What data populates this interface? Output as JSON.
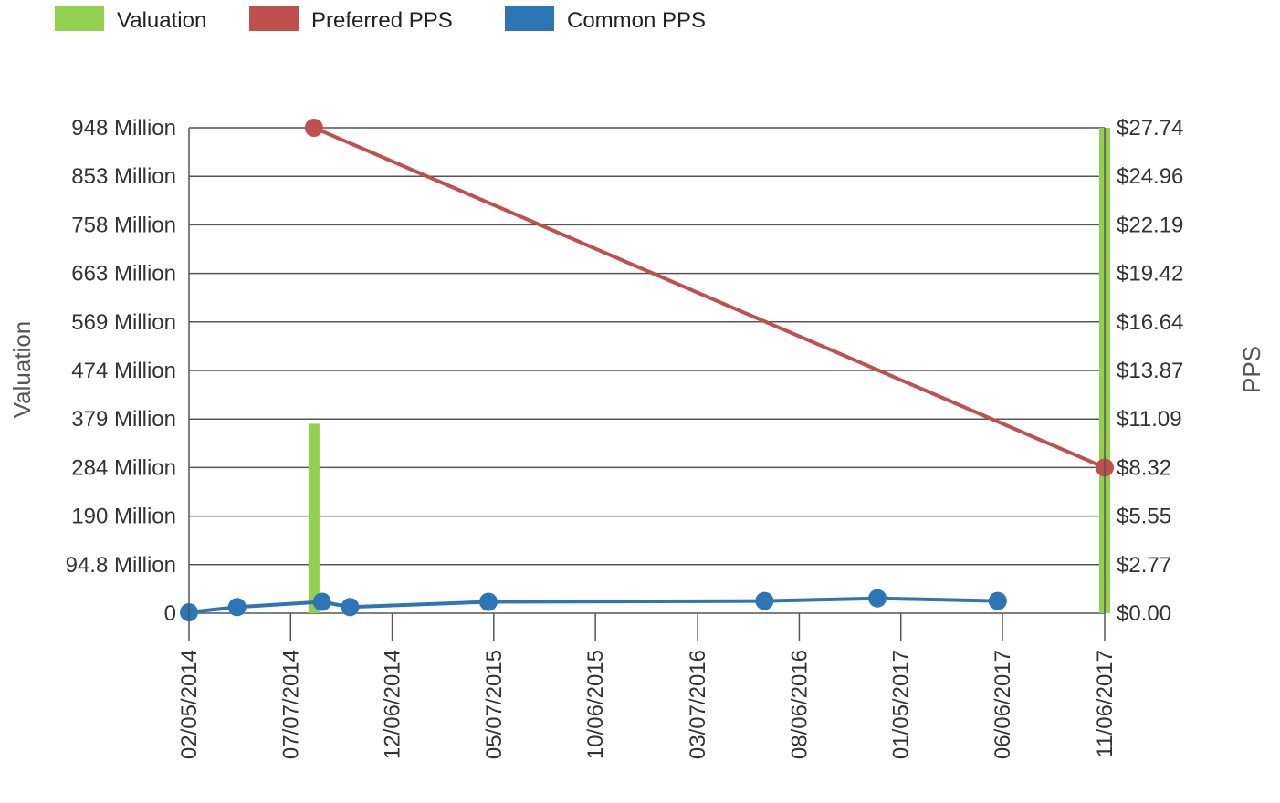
{
  "chart_data": {
    "type": "combo",
    "legend": [
      {
        "name": "Valuation",
        "color": "#92d050",
        "kind": "bar"
      },
      {
        "name": "Preferred PPS",
        "color": "#c0504d",
        "kind": "line"
      },
      {
        "name": "Common PPS",
        "color": "#2e75b6",
        "kind": "line"
      }
    ],
    "left_axis": {
      "title": "Valuation",
      "ticks": [
        "0",
        "94.8 Million",
        "190 Million",
        "284 Million",
        "379 Million",
        "474 Million",
        "569 Million",
        "663 Million",
        "758 Million",
        "853 Million",
        "948 Million"
      ],
      "range": [
        0,
        948000000
      ]
    },
    "right_axis": {
      "title": "PPS",
      "ticks": [
        "$0.00",
        "$2.77",
        "$5.55",
        "$8.32",
        "$11.09",
        "$13.87",
        "$16.64",
        "$19.42",
        "$22.19",
        "$24.96",
        "$27.74"
      ],
      "range": [
        0,
        27.74
      ]
    },
    "x_axis": {
      "type": "date",
      "range": [
        "2014-02-05",
        "2017-11-06"
      ],
      "ticks": [
        "02/05/2014",
        "07/07/2014",
        "12/06/2014",
        "05/07/2015",
        "10/06/2015",
        "03/07/2016",
        "08/06/2016",
        "01/05/2017",
        "06/06/2017",
        "11/06/2017"
      ]
    },
    "series": [
      {
        "name": "Valuation",
        "type": "bar",
        "axis": "left",
        "color": "#92d050",
        "points": [
          {
            "x": "2014-08-11",
            "y": 370000000
          },
          {
            "x": "2017-11-06",
            "y": 948000000
          }
        ]
      },
      {
        "name": "Preferred PPS",
        "type": "line",
        "axis": "right",
        "color": "#c0504d",
        "points": [
          {
            "x": "2014-08-11",
            "y": 27.74
          },
          {
            "x": "2017-11-06",
            "y": 8.32
          }
        ]
      },
      {
        "name": "Common PPS",
        "type": "line",
        "axis": "right",
        "color": "#2e75b6",
        "points": [
          {
            "x": "2014-02-05",
            "y": 0.05
          },
          {
            "x": "2014-04-18",
            "y": 0.35
          },
          {
            "x": "2014-08-23",
            "y": 0.65
          },
          {
            "x": "2014-10-04",
            "y": 0.35
          },
          {
            "x": "2015-04-29",
            "y": 0.65
          },
          {
            "x": "2016-06-15",
            "y": 0.7
          },
          {
            "x": "2016-12-01",
            "y": 0.85
          },
          {
            "x": "2017-05-30",
            "y": 0.7
          }
        ]
      }
    ]
  }
}
